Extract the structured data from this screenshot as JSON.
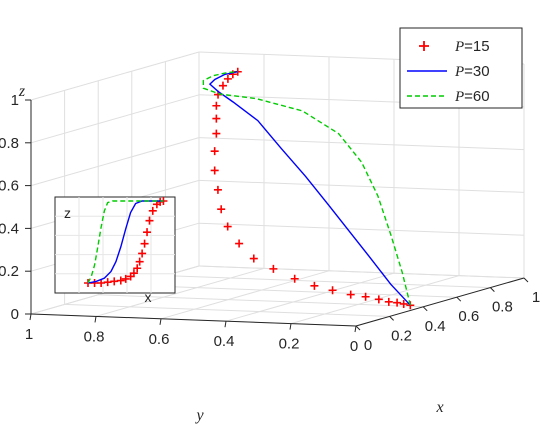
{
  "chart_data": [
    {
      "type": "line",
      "projection": "3d",
      "grid": true,
      "xlabel": "x",
      "ylabel": "y",
      "zlabel": "z",
      "xlim": [
        0,
        1
      ],
      "ylim": [
        0,
        1
      ],
      "zlim": [
        0,
        1
      ],
      "xticks": [
        "0",
        "0.2",
        "0.4",
        "0.6",
        "0.8",
        "1"
      ],
      "yticks": [
        "0",
        "0.2",
        "0.4",
        "0.6",
        "0.8",
        "1"
      ],
      "zticks": [
        "0",
        "0.2",
        "0.4",
        "0.6",
        "0.8",
        "1"
      ],
      "legend_position": "top-right",
      "series": [
        {
          "name": "P=15",
          "legend_var": "P",
          "legend_value": "=15",
          "color": "#ff0000",
          "style": "markers-plus",
          "points": [
            {
              "x": 0.42,
              "y": 0.05,
              "z": 0.0
            },
            {
              "x": 0.4,
              "y": 0.06,
              "z": 0.01
            },
            {
              "x": 0.38,
              "y": 0.07,
              "z": 0.02
            },
            {
              "x": 0.35,
              "y": 0.08,
              "z": 0.03
            },
            {
              "x": 0.31,
              "y": 0.09,
              "z": 0.05
            },
            {
              "x": 0.27,
              "y": 0.11,
              "z": 0.07
            },
            {
              "x": 0.22,
              "y": 0.13,
              "z": 0.09
            },
            {
              "x": 0.17,
              "y": 0.16,
              "z": 0.12
            },
            {
              "x": 0.12,
              "y": 0.19,
              "z": 0.15
            },
            {
              "x": 0.08,
              "y": 0.23,
              "z": 0.19
            },
            {
              "x": 0.05,
              "y": 0.28,
              "z": 0.24
            },
            {
              "x": 0.03,
              "y": 0.33,
              "z": 0.29
            },
            {
              "x": 0.02,
              "y": 0.37,
              "z": 0.36
            },
            {
              "x": 0.01,
              "y": 0.4,
              "z": 0.44
            },
            {
              "x": 0.01,
              "y": 0.42,
              "z": 0.52
            },
            {
              "x": 0.01,
              "y": 0.43,
              "z": 0.61
            },
            {
              "x": 0.01,
              "y": 0.44,
              "z": 0.7
            },
            {
              "x": 0.01,
              "y": 0.44,
              "z": 0.79
            },
            {
              "x": 0.02,
              "y": 0.44,
              "z": 0.87
            },
            {
              "x": 0.02,
              "y": 0.44,
              "z": 0.94
            },
            {
              "x": 0.02,
              "y": 0.44,
              "z": 1.0
            },
            {
              "x": 0.03,
              "y": 0.44,
              "z": 1.05
            },
            {
              "x": 0.04,
              "y": 0.43,
              "z": 1.09
            },
            {
              "x": 0.05,
              "y": 0.42,
              "z": 1.12
            },
            {
              "x": 0.06,
              "y": 0.41,
              "z": 1.14
            },
            {
              "x": 0.07,
              "y": 0.4,
              "z": 1.15
            }
          ]
        },
        {
          "name": "P=30",
          "legend_var": "P",
          "legend_value": "=30",
          "color": "#0000ff",
          "style": "solid",
          "points": [
            {
              "x": 0.42,
              "y": 0.05,
              "z": 0.0
            },
            {
              "x": 0.4,
              "y": 0.1,
              "z": 0.1
            },
            {
              "x": 0.38,
              "y": 0.15,
              "z": 0.22
            },
            {
              "x": 0.35,
              "y": 0.2,
              "z": 0.35
            },
            {
              "x": 0.32,
              "y": 0.25,
              "z": 0.48
            },
            {
              "x": 0.28,
              "y": 0.3,
              "z": 0.62
            },
            {
              "x": 0.23,
              "y": 0.35,
              "z": 0.76
            },
            {
              "x": 0.17,
              "y": 0.39,
              "z": 0.9
            },
            {
              "x": 0.1,
              "y": 0.43,
              "z": 1.0
            },
            {
              "x": 0.05,
              "y": 0.45,
              "z": 1.06
            },
            {
              "x": 0.02,
              "y": 0.46,
              "z": 1.1
            },
            {
              "x": 0.03,
              "y": 0.45,
              "z": 1.12
            },
            {
              "x": 0.05,
              "y": 0.43,
              "z": 1.14
            },
            {
              "x": 0.07,
              "y": 0.4,
              "z": 1.15
            }
          ]
        },
        {
          "name": "P=60",
          "legend_var": "P",
          "legend_value": "=60",
          "color": "#00cc00",
          "style": "dashed",
          "points": [
            {
              "x": 0.42,
              "y": 0.05,
              "z": 0.0
            },
            {
              "x": 0.43,
              "y": 0.08,
              "z": 0.15
            },
            {
              "x": 0.44,
              "y": 0.12,
              "z": 0.32
            },
            {
              "x": 0.44,
              "y": 0.16,
              "z": 0.5
            },
            {
              "x": 0.42,
              "y": 0.2,
              "z": 0.66
            },
            {
              "x": 0.38,
              "y": 0.25,
              "z": 0.8
            },
            {
              "x": 0.3,
              "y": 0.32,
              "z": 0.92
            },
            {
              "x": 0.18,
              "y": 0.4,
              "z": 1.0
            },
            {
              "x": 0.08,
              "y": 0.46,
              "z": 1.04
            },
            {
              "x": 0.02,
              "y": 0.48,
              "z": 1.08
            },
            {
              "x": 0.0,
              "y": 0.47,
              "z": 1.12
            },
            {
              "x": 0.02,
              "y": 0.45,
              "z": 1.14
            },
            {
              "x": 0.05,
              "y": 0.42,
              "z": 1.15
            },
            {
              "x": 0.07,
              "y": 0.4,
              "z": 1.15
            }
          ]
        }
      ]
    },
    {
      "type": "line",
      "xlabel": "x",
      "ylabel": "z",
      "series": [
        {
          "name": "P=15",
          "color": "#ff0000",
          "style": "markers-plus",
          "x": [
            0.0,
            0.08,
            0.16,
            0.24,
            0.32,
            0.4,
            0.46,
            0.52,
            0.56,
            0.6,
            0.63,
            0.66,
            0.69,
            0.72,
            0.75,
            0.79,
            0.84,
            0.88,
            0.92
          ],
          "y": [
            0.0,
            0.0,
            0.0,
            0.01,
            0.02,
            0.03,
            0.05,
            0.08,
            0.12,
            0.18,
            0.26,
            0.36,
            0.48,
            0.62,
            0.76,
            0.88,
            0.96,
            0.99,
            1.0
          ]
        },
        {
          "name": "P=30",
          "color": "#0000ff",
          "style": "solid",
          "x": [
            0.0,
            0.1,
            0.2,
            0.28,
            0.34,
            0.4,
            0.46,
            0.52,
            0.58,
            0.66,
            0.76,
            0.92
          ],
          "y": [
            0.0,
            0.02,
            0.06,
            0.14,
            0.26,
            0.44,
            0.66,
            0.86,
            0.97,
            1.0,
            1.0,
            1.0
          ]
        },
        {
          "name": "P=60",
          "color": "#00cc00",
          "style": "dashed",
          "x": [
            0.0,
            0.04,
            0.08,
            0.12,
            0.16,
            0.2,
            0.24,
            0.3,
            0.4,
            0.6,
            0.92
          ],
          "y": [
            0.0,
            0.08,
            0.22,
            0.44,
            0.68,
            0.88,
            0.98,
            1.0,
            1.0,
            1.0,
            1.0
          ]
        }
      ]
    }
  ]
}
